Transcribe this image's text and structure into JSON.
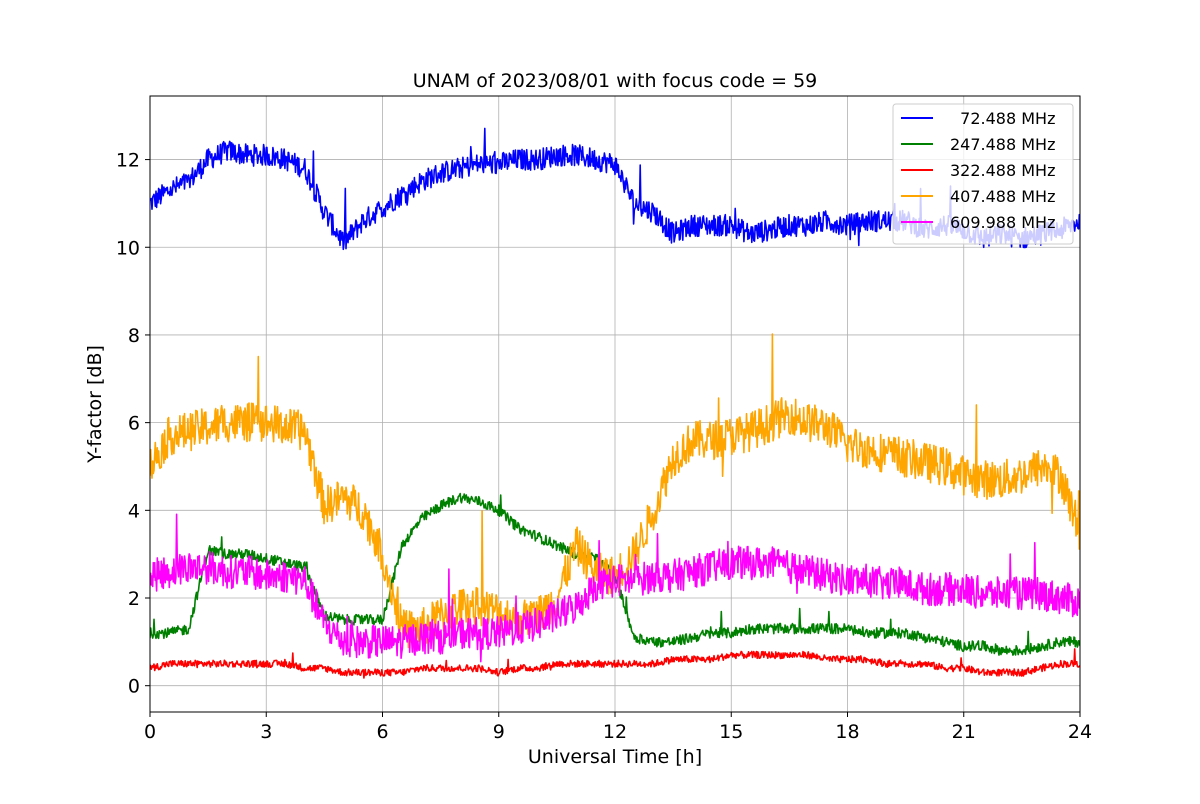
{
  "chart_data": {
    "type": "line",
    "title": "UNAM of 2023/08/01 with focus code = 59",
    "xlabel": "Universal Time [h]",
    "ylabel": "Y-factor [dB]",
    "xlim": [
      0,
      24
    ],
    "ylim": [
      -0.6,
      13.45
    ],
    "xticks": [
      0,
      3,
      6,
      9,
      12,
      15,
      18,
      21,
      24
    ],
    "yticks": [
      0,
      2,
      4,
      6,
      8,
      10,
      12
    ],
    "grid": true,
    "legend_position": "top-right",
    "x": [
      0,
      0.5,
      1,
      1.5,
      2,
      2.5,
      3,
      3.5,
      4,
      4.5,
      5,
      5.5,
      6,
      6.5,
      7,
      7.5,
      8,
      8.5,
      9,
      9.5,
      10,
      10.5,
      11,
      11.5,
      12,
      12.5,
      13,
      13.5,
      14,
      14.5,
      15,
      15.5,
      16,
      16.5,
      17,
      17.5,
      18,
      18.5,
      19,
      19.5,
      20,
      20.5,
      21,
      21.5,
      22,
      22.5,
      23,
      23.5,
      24
    ],
    "series": [
      {
        "name": "  72.488 MHz",
        "color": "#0000ff",
        "values": [
          11.0,
          11.3,
          11.5,
          12.0,
          12.2,
          12.1,
          12.1,
          12.0,
          11.8,
          10.8,
          10.1,
          10.6,
          10.9,
          11.2,
          11.5,
          11.7,
          11.8,
          11.9,
          11.9,
          12.0,
          12.0,
          12.1,
          12.1,
          12.0,
          11.9,
          11.0,
          10.8,
          10.3,
          10.5,
          10.5,
          10.5,
          10.3,
          10.4,
          10.5,
          10.5,
          10.6,
          10.5,
          10.6,
          10.6,
          10.6,
          10.4,
          10.5,
          10.4,
          10.2,
          10.3,
          10.2,
          10.3,
          10.4,
          10.6
        ]
      },
      {
        "name": "247.488 MHz",
        "color": "#008000",
        "values": [
          1.2,
          1.2,
          1.3,
          3.1,
          3.0,
          3.0,
          2.9,
          2.8,
          2.7,
          1.6,
          1.5,
          1.5,
          1.5,
          3.2,
          3.8,
          4.1,
          4.3,
          4.2,
          4.0,
          3.6,
          3.4,
          3.2,
          3.0,
          2.9,
          2.5,
          1.1,
          1.0,
          1.0,
          1.1,
          1.2,
          1.2,
          1.3,
          1.3,
          1.3,
          1.3,
          1.3,
          1.3,
          1.2,
          1.2,
          1.2,
          1.1,
          1.0,
          0.9,
          0.9,
          0.8,
          0.8,
          0.9,
          1.0,
          1.0
        ]
      },
      {
        "name": "322.488 MHz",
        "color": "#ff0000",
        "values": [
          0.4,
          0.5,
          0.5,
          0.5,
          0.5,
          0.5,
          0.5,
          0.5,
          0.4,
          0.4,
          0.3,
          0.3,
          0.3,
          0.3,
          0.4,
          0.4,
          0.4,
          0.4,
          0.3,
          0.4,
          0.4,
          0.5,
          0.5,
          0.5,
          0.5,
          0.5,
          0.5,
          0.6,
          0.6,
          0.6,
          0.7,
          0.7,
          0.7,
          0.7,
          0.7,
          0.6,
          0.6,
          0.6,
          0.5,
          0.5,
          0.5,
          0.4,
          0.4,
          0.3,
          0.3,
          0.3,
          0.4,
          0.5,
          0.5
        ]
      },
      {
        "name": "407.488 MHz",
        "color": "#ffa500",
        "values": [
          5.0,
          5.7,
          5.8,
          5.9,
          6.0,
          6.0,
          6.0,
          5.9,
          5.8,
          4.1,
          4.3,
          4.0,
          3.0,
          1.3,
          1.3,
          1.6,
          1.8,
          1.8,
          1.7,
          1.5,
          1.6,
          2.0,
          3.2,
          2.6,
          2.5,
          3.0,
          4.0,
          5.2,
          5.6,
          5.6,
          5.7,
          5.8,
          6.0,
          6.2,
          6.0,
          5.9,
          5.5,
          5.4,
          5.3,
          5.2,
          5.1,
          5.0,
          4.8,
          4.7,
          4.7,
          4.8,
          5.0,
          4.8,
          3.5
        ]
      },
      {
        "name": "609.988 MHz",
        "color": "#ff00ff",
        "values": [
          2.5,
          2.6,
          2.7,
          2.7,
          2.6,
          2.6,
          2.5,
          2.5,
          2.4,
          1.4,
          1.0,
          1.0,
          1.0,
          1.0,
          1.1,
          1.1,
          1.2,
          1.2,
          1.2,
          1.3,
          1.4,
          1.6,
          1.8,
          2.3,
          2.4,
          2.4,
          2.5,
          2.5,
          2.6,
          2.7,
          2.8,
          2.8,
          2.8,
          2.7,
          2.6,
          2.5,
          2.4,
          2.4,
          2.3,
          2.3,
          2.2,
          2.2,
          2.2,
          2.1,
          2.1,
          2.1,
          2.1,
          2.0,
          1.9
        ]
      }
    ]
  }
}
